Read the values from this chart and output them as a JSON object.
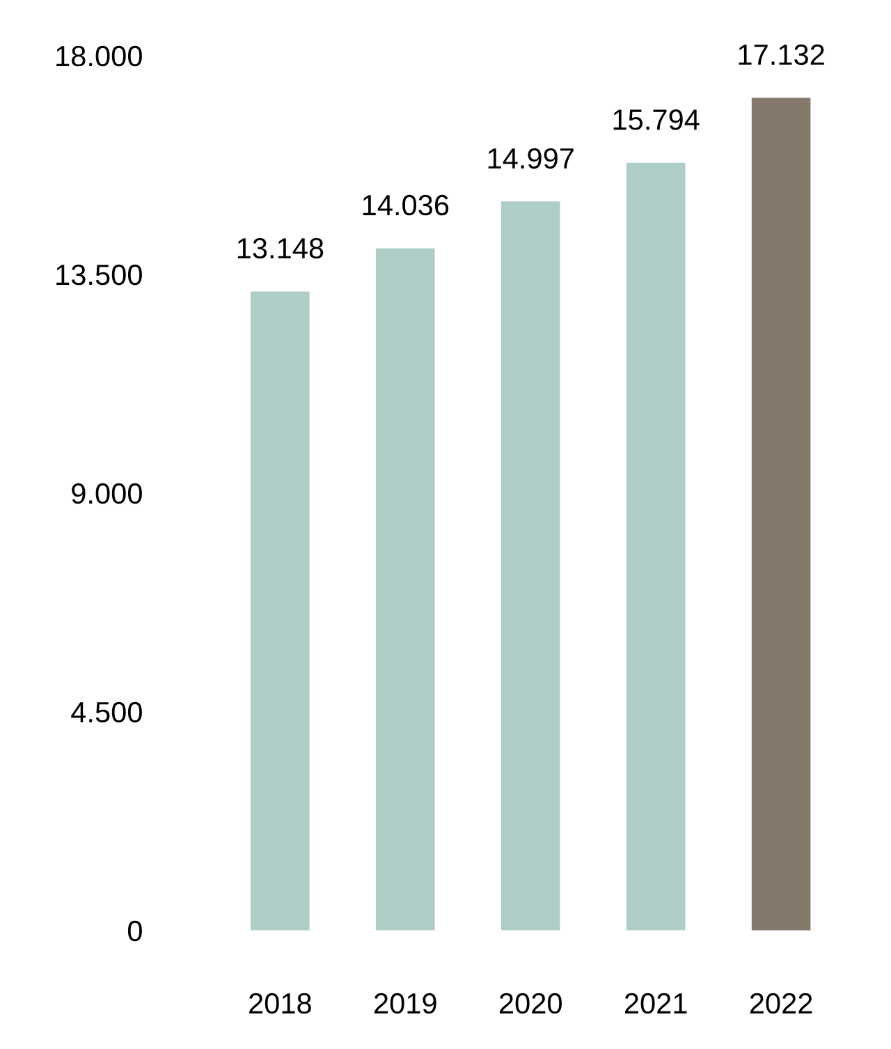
{
  "chart_data": {
    "type": "bar",
    "categories": [
      "2018",
      "2019",
      "2020",
      "2021",
      "2022"
    ],
    "values": [
      13148,
      14036,
      14997,
      15794,
      17132
    ],
    "colors": [
      "#afcdc7",
      "#afcdc7",
      "#afcdc7",
      "#afcdc7",
      "#85796b"
    ],
    "value_labels": [
      "13.148",
      "14.036",
      "14.997",
      "15.794",
      "17.132"
    ],
    "ylim": [
      0,
      18000
    ],
    "yticks": [
      0,
      {
        "value": 4500,
        "label": "4.500"
      },
      {
        "value": 9000,
        "label": "9.000"
      },
      {
        "value": 13500,
        "label": "13.500"
      },
      {
        "value": 18000,
        "label": "18.000"
      }
    ],
    "grid": false,
    "legend": false
  }
}
